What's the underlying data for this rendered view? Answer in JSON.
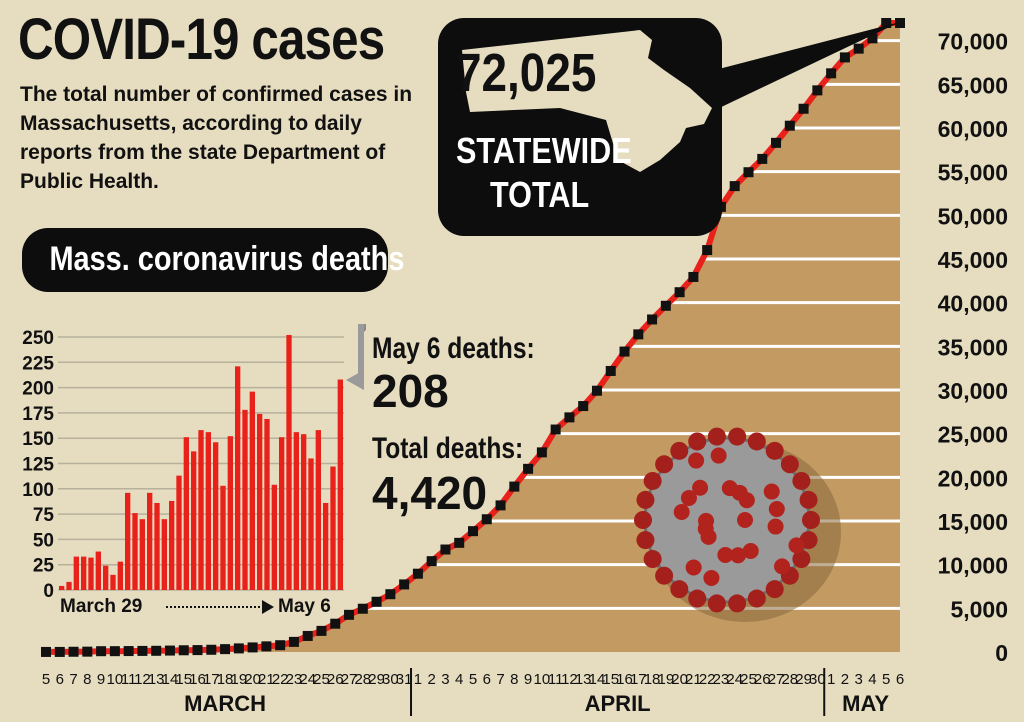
{
  "header": {
    "title": "COVID-19 cases",
    "subtitle": "The total number of confirmed cases in Massachusetts, according to daily reports from the state Department of Public Health."
  },
  "statewide": {
    "total": "72,025",
    "label_line1": "STATEWIDE",
    "label_line2": "TOTAL"
  },
  "deaths_panel": {
    "title": "Mass. coronavirus deaths",
    "latest_label": "May 6 deaths:",
    "latest_value": "208",
    "total_label": "Total deaths:",
    "total_value": "4,420",
    "range_start": "March 29",
    "range_end": "May 6"
  },
  "colors": {
    "background": "#e6dcc0",
    "area_fill": "#c29a62",
    "line": "#e8221b",
    "bar": "#e8221b",
    "marker": "#111111",
    "dark_box": "#0d0d0d"
  },
  "chart_data": [
    {
      "type": "area",
      "title": "COVID-19 cases",
      "y_ticks": [
        "0",
        "5,000",
        "10,000",
        "15,000",
        "20,000",
        "25,000",
        "30,000",
        "35,000",
        "40,000",
        "45,000",
        "50,000",
        "55,000",
        "60,000",
        "65,000",
        "70,000"
      ],
      "ylim": [
        0,
        72025
      ],
      "x_day_labels": [
        "5",
        "6",
        "7",
        "8",
        "9",
        "10",
        "11",
        "12",
        "13",
        "14",
        "15",
        "16",
        "17",
        "18",
        "19",
        "20",
        "21",
        "22",
        "23",
        "24",
        "25",
        "26",
        "27",
        "28",
        "29",
        "30",
        "31",
        "1",
        "2",
        "3",
        "4",
        "5",
        "6",
        "7",
        "8",
        "9",
        "10",
        "11",
        "12",
        "13",
        "14",
        "15",
        "16",
        "17",
        "18",
        "19",
        "20",
        "21",
        "22",
        "23",
        "24",
        "25",
        "26",
        "27",
        "28",
        "29",
        "30",
        "1",
        "2",
        "3",
        "4",
        "5",
        "6"
      ],
      "months": [
        {
          "name": "MARCH",
          "start": 0,
          "end": 26
        },
        {
          "name": "APRIL",
          "start": 27,
          "end": 56
        },
        {
          "name": "MAY",
          "start": 57,
          "end": 62
        }
      ],
      "series": [
        {
          "values": [
            7,
            8,
            28,
            41,
            92,
            95,
            108,
            123,
            138,
            164,
            197,
            218,
            256,
            328,
            413,
            525,
            646,
            777,
            1159,
            1838,
            2417,
            3240,
            4257,
            4955,
            5752,
            6620,
            7738,
            8966,
            10402,
            11736,
            12500,
            13837,
            15202,
            16790,
            18941,
            20974,
            22860,
            25475,
            26867,
            28163,
            29918,
            32181,
            34402,
            36372,
            38077,
            39643,
            41199,
            42944,
            46023,
            50969,
            53348,
            54938,
            56462,
            58302,
            60265,
            62205,
            64311,
            66263,
            68087,
            69087,
            70271,
            72025,
            72025
          ]
        }
      ]
    },
    {
      "type": "bar",
      "title": "Mass. coronavirus deaths",
      "y_ticks": [
        "0",
        "25",
        "50",
        "75",
        "100",
        "125",
        "150",
        "175",
        "200",
        "225",
        "250"
      ],
      "ylim": [
        0,
        250
      ],
      "x_start_label": "March 29",
      "x_end_label": "May 6",
      "values": [
        4,
        8,
        33,
        33,
        32,
        38,
        24,
        15,
        28,
        96,
        76,
        70,
        96,
        86,
        70,
        88,
        113,
        151,
        137,
        158,
        156,
        146,
        103,
        152,
        221,
        178,
        196,
        174,
        169,
        104,
        151,
        252,
        156,
        154,
        130,
        158,
        86,
        122,
        208
      ]
    }
  ]
}
